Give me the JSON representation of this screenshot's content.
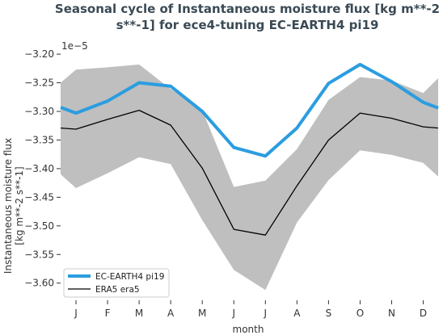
{
  "chart_data": {
    "type": "line",
    "title_lines": [
      "Seasonal cycle of Instantaneous moisture flux [kg m**-2",
      "s**-1] for ece4-tuning EC-EARTH4 pi19"
    ],
    "xlabel": "month",
    "ylabel_lines": [
      "Instantaneous moisture flux",
      "[kg m**-2 s**-1]"
    ],
    "y_multiplier": "1e−5",
    "categories": [
      "J",
      "F",
      "M",
      "A",
      "M",
      "J",
      "J",
      "A",
      "S",
      "O",
      "N",
      "D"
    ],
    "ylim": [
      -3.63,
      -3.19
    ],
    "yticks": [
      -3.2,
      -3.25,
      -3.3,
      -3.35,
      -3.4,
      -3.45,
      -3.5,
      -3.55,
      -3.6
    ],
    "ytick_labels": [
      "−3.20",
      "−3.25",
      "−3.30",
      "−3.35",
      "−3.40",
      "−3.45",
      "−3.50",
      "−3.55",
      "−3.60"
    ],
    "series": [
      {
        "name": "EC-EARTH4 pi19",
        "color": "#2b9de0",
        "values": [
          -3.303,
          -3.282,
          -3.25,
          -3.256,
          -3.3,
          -3.363,
          -3.378,
          -3.329,
          -3.251,
          -3.218,
          -3.248,
          -3.284
        ],
        "wrap": [
          -3.293,
          -3.294
        ]
      },
      {
        "name": "ERA5 era5",
        "color": "#000000",
        "values": [
          -3.331,
          -3.314,
          -3.298,
          -3.324,
          -3.399,
          -3.506,
          -3.516,
          -3.43,
          -3.35,
          -3.303,
          -3.312,
          -3.327
        ],
        "wrap": [
          -3.329,
          -3.329
        ]
      }
    ],
    "band": {
      "color": "#bfbfbf",
      "upper": [
        -3.227,
        -3.223,
        -3.218,
        -3.261,
        -3.298,
        -3.432,
        -3.421,
        -3.366,
        -3.28,
        -3.24,
        -3.246,
        -3.268
      ],
      "lower": [
        -3.434,
        -3.408,
        -3.38,
        -3.392,
        -3.49,
        -3.577,
        -3.612,
        -3.494,
        -3.42,
        -3.368,
        -3.376,
        -3.39
      ],
      "wrap_upper": [
        -3.25,
        -3.242
      ],
      "wrap_lower": [
        -3.41,
        -3.414
      ]
    },
    "legend_position": "lower-left",
    "grid": false
  }
}
